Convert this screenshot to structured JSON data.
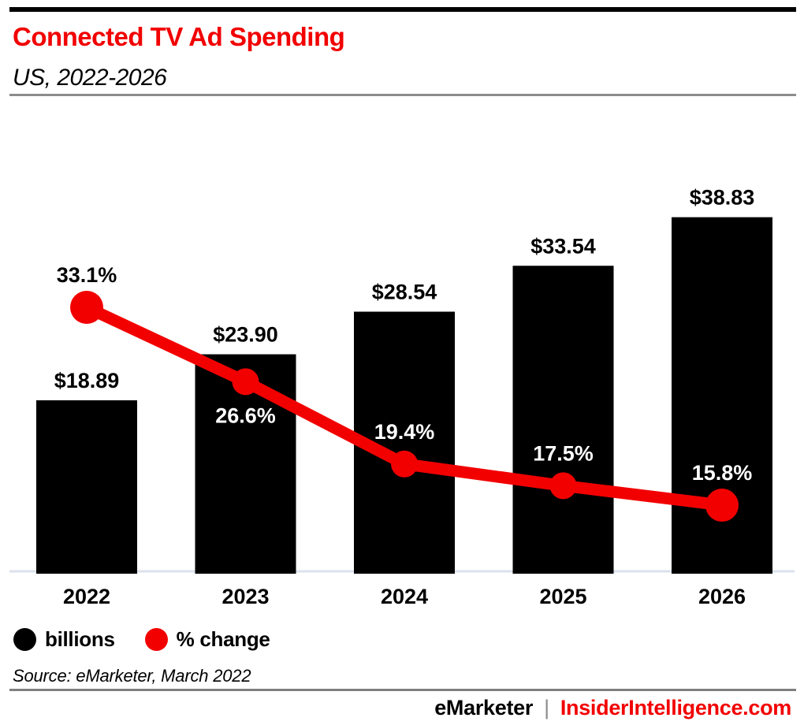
{
  "page": {
    "title": "Connected TV Ad Spending",
    "subtitle": "US, 2022-2026"
  },
  "chart_data": {
    "type": "bar+line",
    "title": "Connected TV Ad Spending",
    "subtitle": "US, 2022-2026",
    "categories": [
      "2022",
      "2023",
      "2024",
      "2025",
      "2026"
    ],
    "series": [
      {
        "name": "billions",
        "kind": "bar",
        "color": "#000000",
        "values": [
          18.89,
          23.9,
          28.54,
          33.54,
          38.83
        ],
        "data_labels": [
          "$18.89",
          "$23.90",
          "$28.54",
          "$33.54",
          "$38.83"
        ],
        "data_label_color": "#000000"
      },
      {
        "name": "% change",
        "kind": "line",
        "color": "#f20000",
        "values": [
          33.1,
          26.6,
          19.4,
          17.5,
          15.8
        ],
        "data_labels": [
          "33.1%",
          "26.6%",
          "19.4%",
          "17.5%",
          "15.8%"
        ],
        "data_label_colors": [
          "#000000",
          "#ffffff",
          "#ffffff",
          "#ffffff",
          "#ffffff"
        ],
        "data_label_placement": [
          "above",
          "below",
          "above",
          "above",
          "above"
        ]
      }
    ],
    "xlabel": "",
    "ylabel": "",
    "y1lim": [
      0,
      42.7
    ],
    "y2lim": [
      9.8,
      44.1
    ],
    "grid": false,
    "x_axis_line": true,
    "legend_position": "bottom-left"
  },
  "legend": {
    "items": [
      {
        "label": "billions",
        "color": "#000000"
      },
      {
        "label": "% change",
        "color": "#f20000"
      }
    ]
  },
  "source": "Source: eMarketer, March 2022",
  "footer": {
    "left_brand": "eMarketer",
    "separator": "|",
    "right_brand": "InsiderIntelligence.com"
  },
  "colors": {
    "accent_red": "#f20000",
    "bar_black": "#000000",
    "axis_line": "#dbe2ec",
    "rule_gray": "#8c8c8c"
  }
}
